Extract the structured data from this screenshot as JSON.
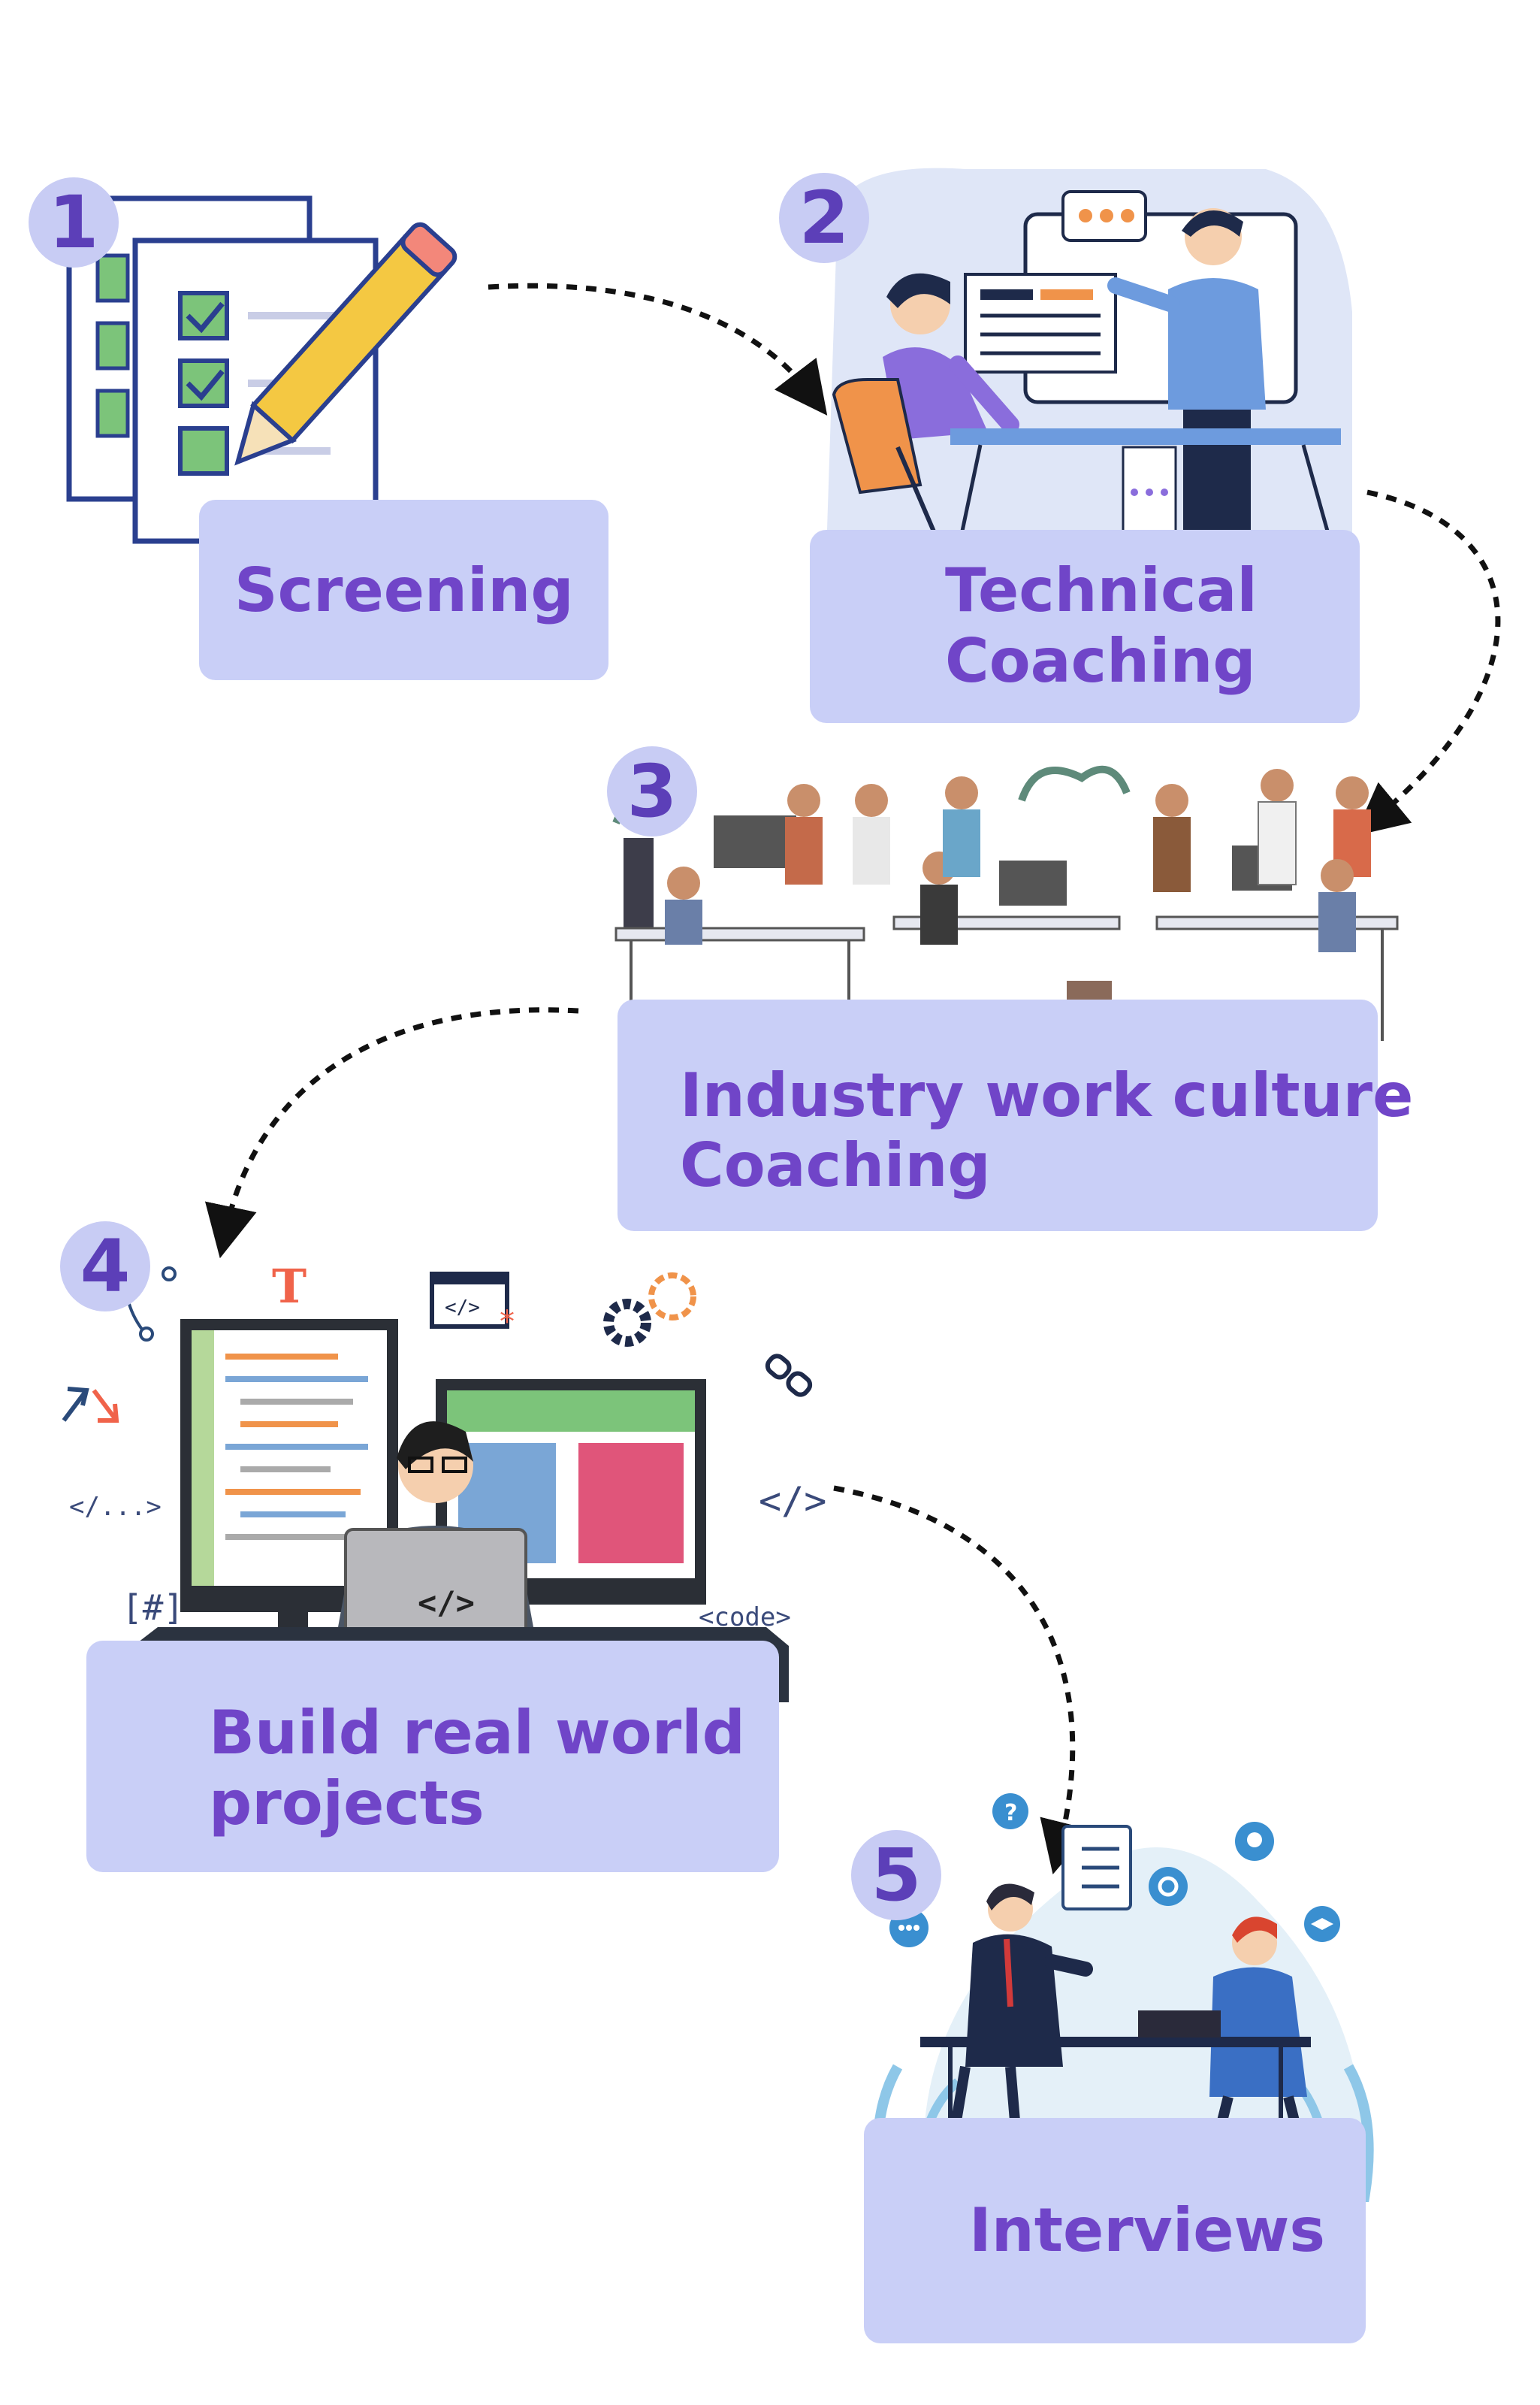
{
  "steps": [
    {
      "number": "1",
      "label": "Screening"
    },
    {
      "number": "2",
      "label_line1": "Technical",
      "label_line2": "Coaching"
    },
    {
      "number": "3",
      "label_line1": "Industry work culture",
      "label_line2": "Coaching"
    },
    {
      "number": "4",
      "label_line1": "Build real world",
      "label_line2": "projects"
    },
    {
      "number": "5",
      "label": "Interviews"
    }
  ],
  "illustration_text": {
    "close_tag": "</...>",
    "slash_tag": "</>",
    "hash_tag": "[#]",
    "code_tag": "<code>",
    "laptop_tag": "</>",
    "type_icon": "T"
  },
  "colors": {
    "box": "#c9cff7",
    "label": "#7045c8",
    "badge": "#c8ccf4",
    "badge_text": "#5c3fb8"
  }
}
